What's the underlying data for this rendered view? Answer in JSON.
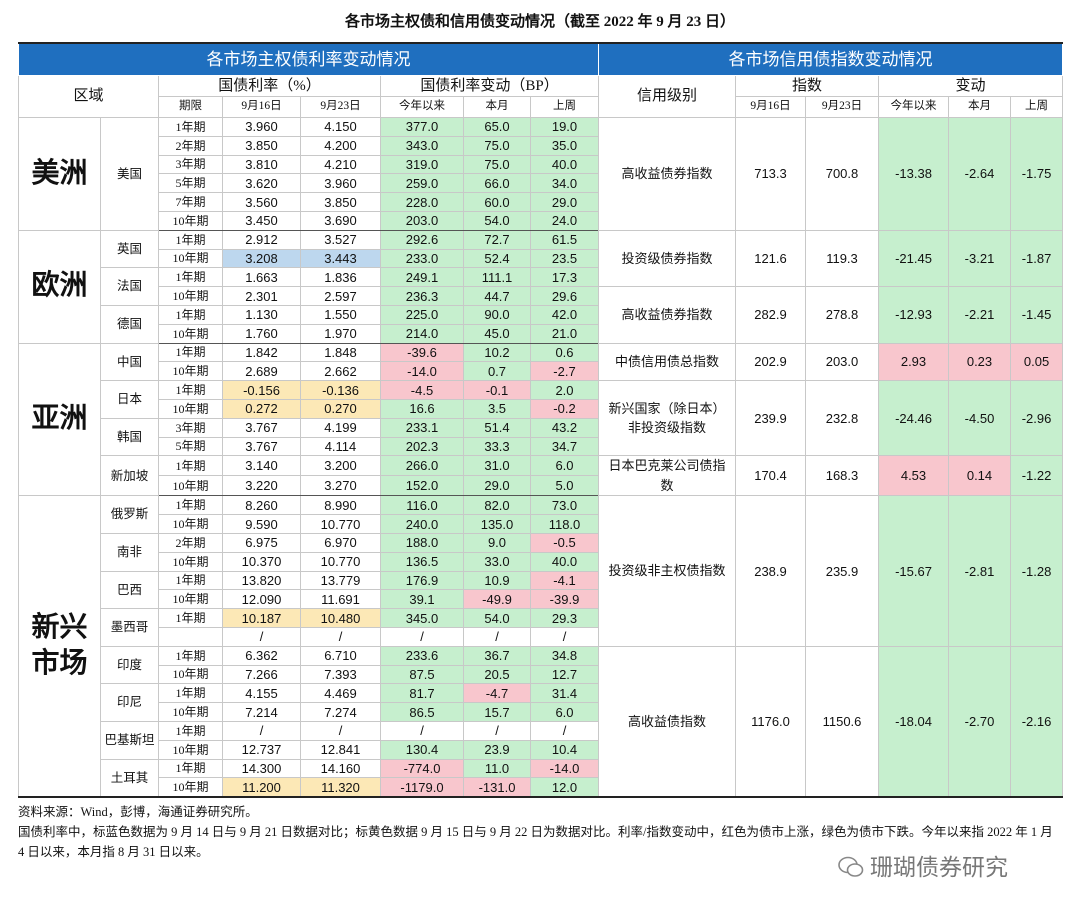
{
  "title": "各市场主权债和信用债变动情况（截至 2022 年 9 月 23 日）",
  "colors": {
    "rise": "#f8c6cd",
    "fall": "#c6efce",
    "blue": "#bdd7ee",
    "yellow": "#fce8b6",
    "header": "#1f6fbf"
  },
  "left": {
    "header": "各市场主权债利率变动情况",
    "region": "区域",
    "rate": "国债利率（%）",
    "change": "国债利率变动（BP）",
    "term": "期限",
    "d1": "9月16日",
    "d2": "9月23日",
    "ytd": "今年以来",
    "month": "本月",
    "week": "上周"
  },
  "right": {
    "header": "各市场信用债指数变动情况",
    "grade": "信用级别",
    "index": "指数",
    "change": "变动",
    "d1": "9月16日",
    "d2": "9月23日",
    "ytd": "今年以来",
    "month": "本月",
    "week": "上周"
  },
  "regions": [
    {
      "name": "美洲",
      "countries": [
        {
          "name": "美国",
          "rows": [
            {
              "term": "1年期",
              "rates": [
                "3.960",
                "4.150"
              ],
              "changes": [
                "377.0",
                "65.0",
                "19.0"
              ]
            },
            {
              "term": "2年期",
              "rates": [
                "3.850",
                "4.200"
              ],
              "changes": [
                "343.0",
                "75.0",
                "35.0"
              ]
            },
            {
              "term": "3年期",
              "rates": [
                "3.810",
                "4.210"
              ],
              "changes": [
                "319.0",
                "75.0",
                "40.0"
              ]
            },
            {
              "term": "5年期",
              "rates": [
                "3.620",
                "3.960"
              ],
              "changes": [
                "259.0",
                "66.0",
                "34.0"
              ]
            },
            {
              "term": "7年期",
              "rates": [
                "3.560",
                "3.850"
              ],
              "changes": [
                "228.0",
                "60.0",
                "29.0"
              ]
            },
            {
              "term": "10年期",
              "rates": [
                "3.450",
                "3.690"
              ],
              "changes": [
                "203.0",
                "54.0",
                "24.0"
              ]
            }
          ]
        }
      ]
    },
    {
      "name": "欧洲",
      "countries": [
        {
          "name": "英国",
          "rows": [
            {
              "term": "1年期",
              "rates": [
                "2.912",
                "3.527"
              ],
              "changes": [
                "292.6",
                "72.7",
                "61.5"
              ]
            },
            {
              "term": "10年期",
              "rates": [
                "3.208",
                "3.443"
              ],
              "changes": [
                "233.0",
                "52.4",
                "23.5"
              ],
              "highlight": "blue"
            }
          ]
        },
        {
          "name": "法国",
          "rows": [
            {
              "term": "1年期",
              "rates": [
                "1.663",
                "1.836"
              ],
              "changes": [
                "249.1",
                "111.1",
                "17.3"
              ]
            },
            {
              "term": "10年期",
              "rates": [
                "2.301",
                "2.597"
              ],
              "changes": [
                "236.3",
                "44.7",
                "29.6"
              ]
            }
          ]
        },
        {
          "name": "德国",
          "rows": [
            {
              "term": "1年期",
              "rates": [
                "1.130",
                "1.550"
              ],
              "changes": [
                "225.0",
                "90.0",
                "42.0"
              ]
            },
            {
              "term": "10年期",
              "rates": [
                "1.760",
                "1.970"
              ],
              "changes": [
                "214.0",
                "45.0",
                "21.0"
              ]
            }
          ]
        }
      ]
    },
    {
      "name": "亚洲",
      "countries": [
        {
          "name": "中国",
          "rows": [
            {
              "term": "1年期",
              "rates": [
                "1.842",
                "1.848"
              ],
              "changes": [
                "-39.6",
                "10.2",
                "0.6"
              ]
            },
            {
              "term": "10年期",
              "rates": [
                "2.689",
                "2.662"
              ],
              "changes": [
                "-14.0",
                "0.7",
                "-2.7"
              ]
            }
          ]
        },
        {
          "name": "日本",
          "rows": [
            {
              "term": "1年期",
              "rates": [
                "-0.156",
                "-0.136"
              ],
              "changes": [
                "-4.5",
                "-0.1",
                "2.0"
              ],
              "highlight": "yellow"
            },
            {
              "term": "10年期",
              "rates": [
                "0.272",
                "0.270"
              ],
              "changes": [
                "16.6",
                "3.5",
                "-0.2"
              ],
              "highlight": "yellow"
            }
          ]
        },
        {
          "name": "韩国",
          "rows": [
            {
              "term": "3年期",
              "rates": [
                "3.767",
                "4.199"
              ],
              "changes": [
                "233.1",
                "51.4",
                "43.2"
              ]
            },
            {
              "term": "5年期",
              "rates": [
                "3.767",
                "4.114"
              ],
              "changes": [
                "202.3",
                "33.3",
                "34.7"
              ]
            }
          ]
        },
        {
          "name": "新加坡",
          "rows": [
            {
              "term": "1年期",
              "rates": [
                "3.140",
                "3.200"
              ],
              "changes": [
                "266.0",
                "31.0",
                "6.0"
              ]
            },
            {
              "term": "10年期",
              "rates": [
                "3.220",
                "3.270"
              ],
              "changes": [
                "152.0",
                "29.0",
                "5.0"
              ]
            }
          ]
        }
      ]
    },
    {
      "name": "新兴市场",
      "countries": [
        {
          "name": "俄罗斯",
          "rows": [
            {
              "term": "1年期",
              "rates": [
                "8.260",
                "8.990"
              ],
              "changes": [
                "116.0",
                "82.0",
                "73.0"
              ]
            },
            {
              "term": "10年期",
              "rates": [
                "9.590",
                "10.770"
              ],
              "changes": [
                "240.0",
                "135.0",
                "118.0"
              ]
            }
          ]
        },
        {
          "name": "南非",
          "rows": [
            {
              "term": "2年期",
              "rates": [
                "6.975",
                "6.970"
              ],
              "changes": [
                "188.0",
                "9.0",
                "-0.5"
              ]
            },
            {
              "term": "10年期",
              "rates": [
                "10.370",
                "10.770"
              ],
              "changes": [
                "136.5",
                "33.0",
                "40.0"
              ]
            }
          ]
        },
        {
          "name": "巴西",
          "rows": [
            {
              "term": "1年期",
              "rates": [
                "13.820",
                "13.779"
              ],
              "changes": [
                "176.9",
                "10.9",
                "-4.1"
              ]
            },
            {
              "term": "10年期",
              "rates": [
                "12.090",
                "11.691"
              ],
              "changes": [
                "39.1",
                "-49.9",
                "-39.9"
              ]
            }
          ]
        },
        {
          "name": "墨西哥",
          "rows": [
            {
              "term": "1年期",
              "rates": [
                "10.187",
                "10.480"
              ],
              "changes": [
                "345.0",
                "54.0",
                "29.3"
              ],
              "highlight": "yellow"
            },
            {
              "term": null,
              "rates": [
                "/",
                "/"
              ],
              "changes": [
                "/",
                "/",
                "/"
              ]
            }
          ]
        },
        {
          "name": "印度",
          "rows": [
            {
              "term": "1年期",
              "rates": [
                "6.362",
                "6.710"
              ],
              "changes": [
                "233.6",
                "36.7",
                "34.8"
              ]
            },
            {
              "term": "10年期",
              "rates": [
                "7.266",
                "7.393"
              ],
              "changes": [
                "87.5",
                "20.5",
                "12.7"
              ]
            }
          ]
        },
        {
          "name": "印尼",
          "rows": [
            {
              "term": "1年期",
              "rates": [
                "4.155",
                "4.469"
              ],
              "changes": [
                "81.7",
                "-4.7",
                "31.4"
              ]
            },
            {
              "term": "10年期",
              "rates": [
                "7.214",
                "7.274"
              ],
              "changes": [
                "86.5",
                "15.7",
                "6.0"
              ]
            }
          ]
        },
        {
          "name": "巴基斯坦",
          "rows": [
            {
              "term": "1年期",
              "rates": [
                "/",
                "/"
              ],
              "changes": [
                "/",
                "/",
                "/"
              ]
            },
            {
              "term": "10年期",
              "rates": [
                "12.737",
                "12.841"
              ],
              "changes": [
                "130.4",
                "23.9",
                "10.4"
              ]
            }
          ]
        },
        {
          "name": "土耳其",
          "rows": [
            {
              "term": "1年期",
              "rates": [
                "14.300",
                "14.160"
              ],
              "changes": [
                "-774.0",
                "11.0",
                "-14.0"
              ]
            },
            {
              "term": "10年期",
              "rates": [
                "11.200",
                "11.320"
              ],
              "changes": [
                "-1179.0",
                "-131.0",
                "12.0"
              ],
              "highlight": "yellow"
            }
          ]
        }
      ]
    }
  ],
  "credit": [
    {
      "name": "高收益债券指数",
      "span": 6,
      "values": [
        "713.3",
        "700.8"
      ],
      "changes": [
        "-13.38",
        "-2.64",
        "-1.75"
      ]
    },
    {
      "name": "投资级债券指数",
      "span": 3,
      "values": [
        "121.6",
        "119.3"
      ],
      "changes": [
        "-21.45",
        "-3.21",
        "-1.87"
      ]
    },
    {
      "name": "高收益债券指数",
      "span": 3,
      "values": [
        "282.9",
        "278.8"
      ],
      "changes": [
        "-12.93",
        "-2.21",
        "-1.45"
      ]
    },
    {
      "name": "中债信用债总指数",
      "span": 2,
      "values": [
        "202.9",
        "203.0"
      ],
      "changes": [
        "2.93",
        "0.23",
        "0.05"
      ]
    },
    {
      "name": "新兴国家（除日本）非投资级指数",
      "span": 4,
      "values": [
        "239.9",
        "232.8"
      ],
      "changes": [
        "-24.46",
        "-4.50",
        "-2.96"
      ]
    },
    {
      "name": "日本巴克莱公司债指数",
      "span": 2,
      "values": [
        "170.4",
        "168.3"
      ],
      "changes": [
        "4.53",
        "0.14",
        "-1.22"
      ]
    },
    {
      "name": "投资级非主权债指数",
      "span": 8,
      "values": [
        "238.9",
        "235.9"
      ],
      "changes": [
        "-15.67",
        "-2.81",
        "-1.28"
      ]
    },
    {
      "name": "高收益债指数",
      "span": 8,
      "values": [
        "1176.0",
        "1150.6"
      ],
      "changes": [
        "-18.04",
        "-2.70",
        "-2.16"
      ]
    }
  ],
  "notes": [
    "资料来源：Wind，彭博，海通证券研究所。",
    "国债利率中，标蓝色数据为 9 月 14 日与 9 月 21 日数据对比；标黄色数据 9 月 15 日与 9 月 22 日为数据对比。利率/指数变动中，红色为债市上涨，绿色为债市下跌。今年以来指 2022 年 1 月 4 日以来，本月指 8 月 31 日以来。"
  ],
  "watermark": "珊瑚债券研究"
}
